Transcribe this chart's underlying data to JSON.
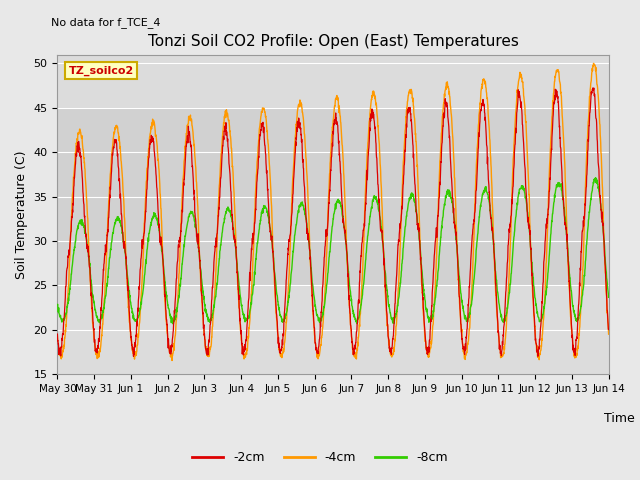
{
  "title": "Tonzi Soil CO2 Profile: Open (East) Temperatures",
  "subtitle": "No data for f_TCE_4",
  "ylabel": "Soil Temperature (C)",
  "xlabel": "Time",
  "ylim": [
    15,
    51
  ],
  "yticks": [
    15,
    20,
    25,
    30,
    35,
    40,
    45,
    50
  ],
  "legend_label": "TZ_soilco2",
  "series_labels": [
    "-2cm",
    "-4cm",
    "-8cm"
  ],
  "series_colors": [
    "#dd0000",
    "#ff9900",
    "#33cc00"
  ],
  "bg_color": "#e8e8e8",
  "plot_bg_color": "#dcdcdc",
  "xtick_labels": [
    "May 30",
    "May 31",
    "Jun 1",
    "Jun 2",
    "Jun 3",
    "Jun 4",
    "Jun 5",
    "Jun 6",
    "Jun 7",
    "Jun 8",
    "Jun 9",
    "Jun 10",
    "Jun 11",
    "Jun 12",
    "Jun 13",
    "Jun 14"
  ],
  "num_days": 15,
  "points_per_day": 144
}
